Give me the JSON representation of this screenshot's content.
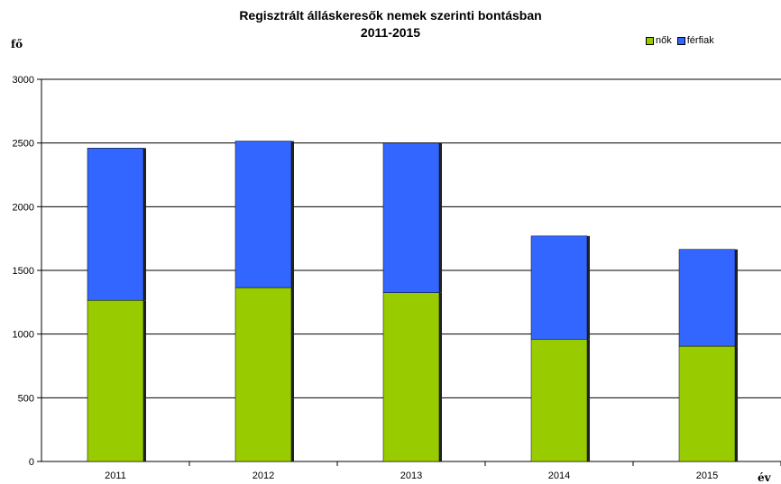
{
  "chart_data": {
    "type": "bar",
    "stacked": true,
    "title": "Regisztrált álláskeresők nemek szerinti bontásban",
    "subtitle": "2011-2015",
    "ylabel": "fő",
    "xlabel": "év",
    "categories": [
      "2011",
      "2012",
      "2013",
      "2014",
      "2015"
    ],
    "series": [
      {
        "name": "nők",
        "color": "#99cc00",
        "values": [
          1265,
          1365,
          1325,
          960,
          905
        ]
      },
      {
        "name": "férfiak",
        "color": "#3366ff",
        "values": [
          1195,
          1150,
          1175,
          810,
          760
        ]
      }
    ],
    "ylim": [
      0,
      3000
    ],
    "yticks": [
      0,
      500,
      1000,
      1500,
      2000,
      2500,
      3000
    ],
    "grid": true,
    "legend": "top-right"
  }
}
